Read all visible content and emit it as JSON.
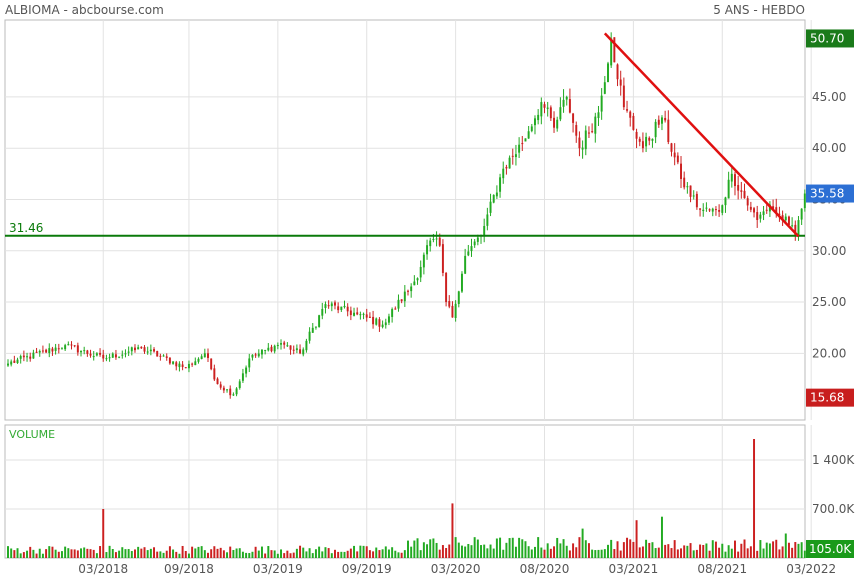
{
  "header": {
    "title": "ALBIOMA - abcbourse.com",
    "period": "5 ANS - HEBDO"
  },
  "chart_data": {
    "type": "candlestick",
    "price_panel": {
      "ylim": [
        13.5,
        52.5
      ],
      "y_ticks": [
        "45.00",
        "40.00",
        "35.00",
        "30.00",
        "25.00",
        "20.00"
      ],
      "y_tick_values": [
        45,
        40,
        35,
        30,
        25,
        20
      ],
      "price_labels": [
        {
          "text": "50.70",
          "value": 50.7,
          "color": "#1a7a1a"
        },
        {
          "text": "35.58",
          "value": 35.58,
          "color": "#2c6fd4"
        },
        {
          "text": "15.68",
          "value": 15.68,
          "color": "#c81e1e"
        }
      ],
      "support_line": {
        "value": 31.46,
        "label": "31.46",
        "color": "#0a7a0a"
      },
      "trend_line": {
        "start": {
          "date": "2020-11",
          "value": 51.2
        },
        "end": {
          "date": "2021-12",
          "value": 31.4
        },
        "color": "#e01010"
      },
      "anchors": [
        [
          0,
          19.0
        ],
        [
          18,
          20.8
        ],
        [
          30,
          19.5
        ],
        [
          42,
          20.5
        ],
        [
          56,
          18.6
        ],
        [
          62,
          20.0
        ],
        [
          66,
          17.0
        ],
        [
          71,
          16.0
        ],
        [
          76,
          19.5
        ],
        [
          86,
          21.0
        ],
        [
          92,
          20.0
        ],
        [
          100,
          24.8
        ],
        [
          110,
          23.8
        ],
        [
          118,
          22.8
        ],
        [
          128,
          27.0
        ],
        [
          133,
          31.0
        ],
        [
          136,
          30.5
        ],
        [
          138,
          25.0
        ],
        [
          140,
          23.5
        ],
        [
          144,
          29.5
        ],
        [
          149,
          31.5
        ],
        [
          156,
          38.0
        ],
        [
          162,
          40.5
        ],
        [
          168,
          44.5
        ],
        [
          172,
          42.0
        ],
        [
          176,
          45.0
        ],
        [
          180,
          40.0
        ],
        [
          186,
          43.5
        ],
        [
          190,
          50.7
        ],
        [
          194,
          44.0
        ],
        [
          200,
          40.0
        ],
        [
          206,
          43.0
        ],
        [
          212,
          37.0
        ],
        [
          218,
          34.0
        ],
        [
          224,
          33.8
        ],
        [
          228,
          37.5
        ],
        [
          234,
          34.0
        ],
        [
          236,
          33.0
        ],
        [
          240,
          34.5
        ],
        [
          246,
          32.5
        ],
        [
          248,
          31.5
        ],
        [
          251,
          35.58
        ]
      ]
    },
    "volume_panel": {
      "title": "VOLUME",
      "ylim": [
        0,
        1900000
      ],
      "y_ticks": [
        "1 400K",
        "700.0K"
      ],
      "y_tick_values": [
        1400000,
        700000
      ],
      "last_label": {
        "text": "105.0K",
        "value": 105000
      },
      "spikes": [
        {
          "index": 30,
          "value": 700000
        },
        {
          "index": 140,
          "value": 780000
        },
        {
          "index": 181,
          "value": 420000
        },
        {
          "index": 198,
          "value": 540000
        },
        {
          "index": 206,
          "value": 590000
        },
        {
          "index": 235,
          "value": 1700000
        },
        {
          "index": 245,
          "value": 350000
        }
      ]
    },
    "x_ticks": [
      {
        "label": "03/2018",
        "index": 30
      },
      {
        "label": "09/2018",
        "index": 57
      },
      {
        "label": "03/2019",
        "index": 85
      },
      {
        "label": "09/2019",
        "index": 113
      },
      {
        "label": "03/2020",
        "index": 141
      },
      {
        "label": "08/2020",
        "index": 169
      },
      {
        "label": "03/2021",
        "index": 197
      },
      {
        "label": "08/2021",
        "index": 225
      },
      {
        "label": "03/2022",
        "index": 253
      }
    ],
    "n_candles": 252,
    "colors": {
      "up": "#22aa22",
      "down": "#cc2020",
      "grid": "#e2e2e2"
    }
  }
}
